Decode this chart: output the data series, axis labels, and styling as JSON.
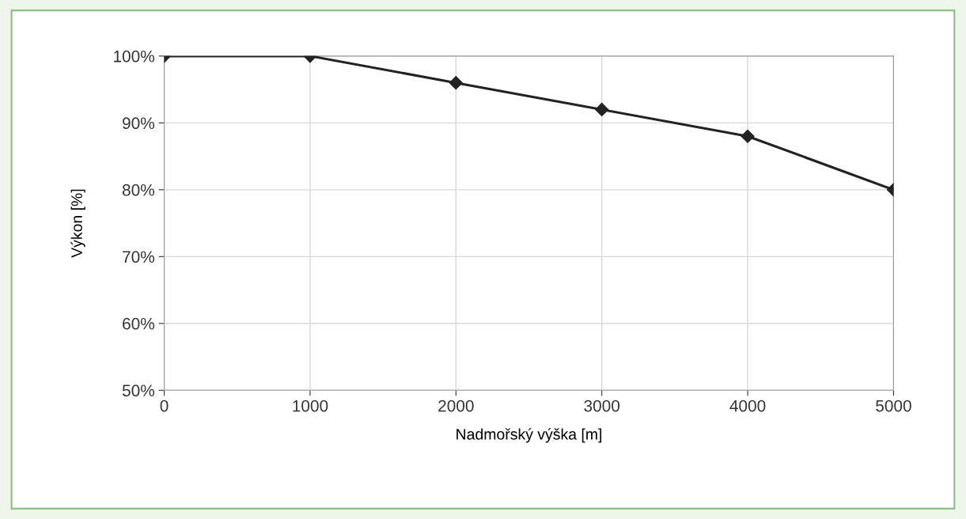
{
  "chart_data": {
    "type": "line",
    "xlabel": "Nadmořský výška [m]",
    "ylabel": "Výkon [%]",
    "x": [
      0,
      1000,
      2000,
      3000,
      4000,
      5000
    ],
    "series": [
      {
        "color": "#222222",
        "values": [
          100,
          100,
          96,
          92,
          88,
          80
        ]
      }
    ],
    "xlim": [
      0,
      5000
    ],
    "xticks": [
      0,
      1000,
      2000,
      3000,
      4000,
      5000
    ],
    "ylim": [
      50,
      100
    ],
    "yticks": [
      {
        "value": 50,
        "label": "50%"
      },
      {
        "value": 60,
        "label": "60%"
      },
      {
        "value": 70,
        "label": "70%"
      },
      {
        "value": 80,
        "label": "80%"
      },
      {
        "value": 90,
        "label": "90%"
      },
      {
        "value": 100,
        "label": "100%"
      }
    ],
    "grid": true,
    "marker": "diamond",
    "line_style": "solid",
    "legend": false
  }
}
